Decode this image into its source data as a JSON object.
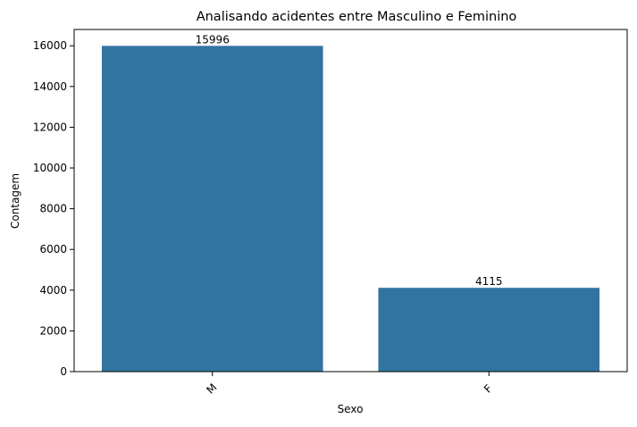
{
  "chart_data": {
    "type": "bar",
    "title": "Analisando acidentes entre Masculino e Feminino",
    "xlabel": "Sexo",
    "ylabel": "Contagem",
    "categories": [
      "M",
      "F"
    ],
    "values": [
      15996,
      4115
    ],
    "value_labels": [
      "15996",
      "4115"
    ],
    "ylim": [
      0,
      16800
    ],
    "yticks": [
      0,
      2000,
      4000,
      6000,
      8000,
      10000,
      12000,
      14000,
      16000
    ],
    "grid": false,
    "legend": false,
    "bar_color": "#3274a1"
  }
}
